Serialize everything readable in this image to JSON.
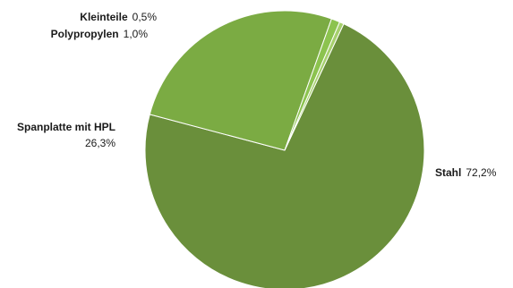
{
  "chart_data": {
    "type": "pie",
    "title": "",
    "categories": [
      "Stahl",
      "Spanplatte mit HPL",
      "Polypropylen",
      "Kleinteile"
    ],
    "values": [
      72.2,
      26.3,
      1.0,
      0.5
    ],
    "value_labels": [
      "72,2%",
      "26,3%",
      "1,0%",
      "0,5%"
    ],
    "colors": [
      "#6a8f3b",
      "#7bab43",
      "#8cc34f",
      "#a6d06d"
    ],
    "start_angle_deg": 25,
    "direction": "clockwise",
    "legend": "none"
  }
}
